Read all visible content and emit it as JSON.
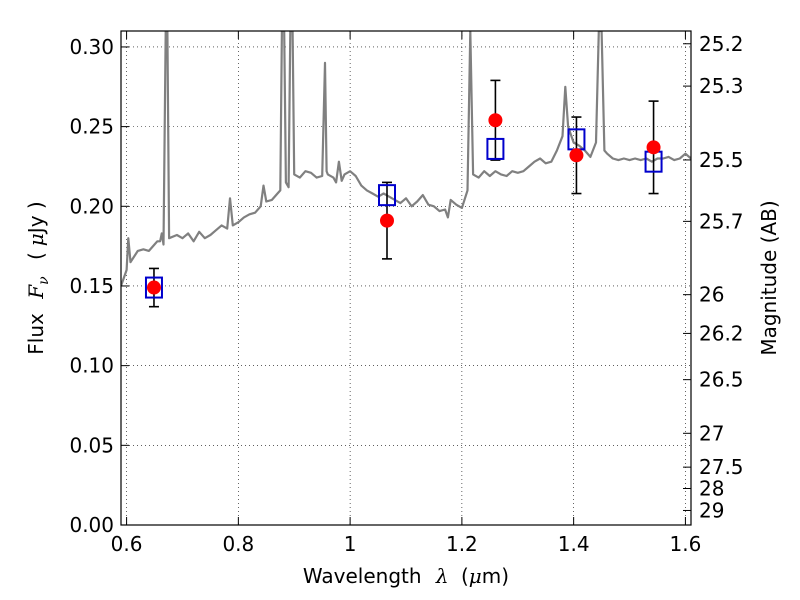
{
  "chart_data": {
    "type": "scatter",
    "title": "",
    "xlabel": {
      "prefix": "Wavelength",
      "symbol": "λ",
      "unit_open": "(",
      "unit_symbol": "μ",
      "unit_rest": "m)"
    },
    "ylabel": {
      "prefix": "Flux",
      "symbol": "F",
      "subscript": "ν",
      "unit_open": "(",
      "unit_symbol": "μ",
      "unit_rest": "Jy )"
    },
    "y2label": "Magnitude (AB)",
    "xlim": [
      0.59,
      1.61
    ],
    "ylim": [
      0.0,
      0.31
    ],
    "grid": true,
    "grid_style": "dotted",
    "x_ticks": [
      {
        "value": 0.6,
        "label": "0.6"
      },
      {
        "value": 0.8,
        "label": "0.8"
      },
      {
        "value": 1.0,
        "label": "1"
      },
      {
        "value": 1.2,
        "label": "1.2"
      },
      {
        "value": 1.4,
        "label": "1.4"
      },
      {
        "value": 1.6,
        "label": "1.6"
      }
    ],
    "y_ticks": [
      {
        "value": 0.0,
        "label": "0.00"
      },
      {
        "value": 0.05,
        "label": "0.05"
      },
      {
        "value": 0.1,
        "label": "0.10"
      },
      {
        "value": 0.15,
        "label": "0.15"
      },
      {
        "value": 0.2,
        "label": "0.20"
      },
      {
        "value": 0.25,
        "label": "0.25"
      },
      {
        "value": 0.3,
        "label": "0.30"
      }
    ],
    "y2_ticks": [
      {
        "mag": 25.2,
        "label": "25.2"
      },
      {
        "mag": 25.3,
        "label": "25.3"
      },
      {
        "mag": 25.5,
        "label": "25.5"
      },
      {
        "mag": 25.7,
        "label": "25.7"
      },
      {
        "mag": 26.0,
        "label": "26"
      },
      {
        "mag": 26.2,
        "label": "26.2"
      },
      {
        "mag": 26.5,
        "label": "26.5"
      },
      {
        "mag": 27.0,
        "label": "27"
      },
      {
        "mag": 27.5,
        "label": "27.5"
      },
      {
        "mag": 28.0,
        "label": "28"
      },
      {
        "mag": 29.0,
        "label": "29"
      }
    ],
    "series": [
      {
        "kind": "line",
        "color": "#808080",
        "points": [
          [
            0.59,
            0.15
          ],
          [
            0.6,
            0.16
          ],
          [
            0.603,
            0.18
          ],
          [
            0.607,
            0.165
          ],
          [
            0.62,
            0.172
          ],
          [
            0.63,
            0.173
          ],
          [
            0.64,
            0.172
          ],
          [
            0.65,
            0.176
          ],
          [
            0.655,
            0.178
          ],
          [
            0.66,
            0.178
          ],
          [
            0.663,
            0.183
          ],
          [
            0.666,
            0.176
          ],
          [
            0.67,
            0.31
          ],
          [
            0.673,
            0.31
          ],
          [
            0.676,
            0.18
          ],
          [
            0.69,
            0.182
          ],
          [
            0.7,
            0.18
          ],
          [
            0.71,
            0.183
          ],
          [
            0.72,
            0.178
          ],
          [
            0.73,
            0.184
          ],
          [
            0.74,
            0.18
          ],
          [
            0.75,
            0.182
          ],
          [
            0.76,
            0.185
          ],
          [
            0.77,
            0.188
          ],
          [
            0.78,
            0.186
          ],
          [
            0.785,
            0.205
          ],
          [
            0.79,
            0.188
          ],
          [
            0.8,
            0.19
          ],
          [
            0.81,
            0.193
          ],
          [
            0.82,
            0.195
          ],
          [
            0.83,
            0.196
          ],
          [
            0.84,
            0.2
          ],
          [
            0.845,
            0.213
          ],
          [
            0.85,
            0.203
          ],
          [
            0.86,
            0.204
          ],
          [
            0.87,
            0.208
          ],
          [
            0.875,
            0.21
          ],
          [
            0.878,
            0.31
          ],
          [
            0.882,
            0.31
          ],
          [
            0.885,
            0.215
          ],
          [
            0.89,
            0.212
          ],
          [
            0.893,
            0.31
          ],
          [
            0.897,
            0.31
          ],
          [
            0.9,
            0.22
          ],
          [
            0.91,
            0.218
          ],
          [
            0.92,
            0.222
          ],
          [
            0.93,
            0.221
          ],
          [
            0.94,
            0.218
          ],
          [
            0.95,
            0.219
          ],
          [
            0.955,
            0.29
          ],
          [
            0.958,
            0.222
          ],
          [
            0.96,
            0.22
          ],
          [
            0.97,
            0.218
          ],
          [
            0.975,
            0.215
          ],
          [
            0.98,
            0.228
          ],
          [
            0.985,
            0.216
          ],
          [
            0.99,
            0.22
          ],
          [
            1.0,
            0.222
          ],
          [
            1.01,
            0.219
          ],
          [
            1.02,
            0.213
          ],
          [
            1.03,
            0.21
          ],
          [
            1.04,
            0.208
          ],
          [
            1.05,
            0.206
          ],
          [
            1.06,
            0.208
          ],
          [
            1.07,
            0.206
          ],
          [
            1.08,
            0.204
          ],
          [
            1.09,
            0.202
          ],
          [
            1.1,
            0.205
          ],
          [
            1.11,
            0.2
          ],
          [
            1.12,
            0.203
          ],
          [
            1.13,
            0.207
          ],
          [
            1.14,
            0.201
          ],
          [
            1.15,
            0.2
          ],
          [
            1.16,
            0.197
          ],
          [
            1.17,
            0.198
          ],
          [
            1.175,
            0.193
          ],
          [
            1.18,
            0.204
          ],
          [
            1.19,
            0.201
          ],
          [
            1.2,
            0.199
          ],
          [
            1.21,
            0.21
          ],
          [
            1.215,
            0.31
          ],
          [
            1.22,
            0.22
          ],
          [
            1.23,
            0.218
          ],
          [
            1.24,
            0.222
          ],
          [
            1.25,
            0.219
          ],
          [
            1.26,
            0.222
          ],
          [
            1.27,
            0.22
          ],
          [
            1.28,
            0.219
          ],
          [
            1.29,
            0.222
          ],
          [
            1.3,
            0.221
          ],
          [
            1.31,
            0.222
          ],
          [
            1.32,
            0.225
          ],
          [
            1.33,
            0.228
          ],
          [
            1.34,
            0.23
          ],
          [
            1.35,
            0.227
          ],
          [
            1.36,
            0.228
          ],
          [
            1.37,
            0.235
          ],
          [
            1.38,
            0.244
          ],
          [
            1.385,
            0.275
          ],
          [
            1.39,
            0.25
          ],
          [
            1.4,
            0.24
          ],
          [
            1.41,
            0.238
          ],
          [
            1.42,
            0.235
          ],
          [
            1.43,
            0.231
          ],
          [
            1.44,
            0.24
          ],
          [
            1.445,
            0.31
          ],
          [
            1.45,
            0.31
          ],
          [
            1.455,
            0.235
          ],
          [
            1.46,
            0.233
          ],
          [
            1.47,
            0.23
          ],
          [
            1.48,
            0.229
          ],
          [
            1.49,
            0.23
          ],
          [
            1.5,
            0.229
          ],
          [
            1.51,
            0.23
          ],
          [
            1.52,
            0.229
          ],
          [
            1.53,
            0.23
          ],
          [
            1.54,
            0.228
          ],
          [
            1.55,
            0.23
          ],
          [
            1.56,
            0.23
          ],
          [
            1.57,
            0.231
          ],
          [
            1.58,
            0.229
          ],
          [
            1.59,
            0.23
          ],
          [
            1.6,
            0.233
          ],
          [
            1.61,
            0.23
          ]
        ]
      },
      {
        "kind": "open-square",
        "color": "#0000cc",
        "points": [
          [
            0.649,
            0.149
          ],
          [
            1.066,
            0.207
          ],
          [
            1.26,
            0.236
          ],
          [
            1.405,
            0.242
          ],
          [
            1.543,
            0.228
          ]
        ]
      },
      {
        "kind": "filled-circle",
        "color": "#ff0000",
        "points": [
          [
            0.649,
            0.149
          ],
          [
            1.066,
            0.191
          ],
          [
            1.26,
            0.254
          ],
          [
            1.405,
            0.232
          ],
          [
            1.543,
            0.237
          ]
        ],
        "yerr": [
          [
            0.012,
            0.012
          ],
          [
            0.024,
            0.024
          ],
          [
            0.025,
            0.025
          ],
          [
            0.024,
            0.024
          ],
          [
            0.029,
            0.029
          ]
        ]
      }
    ]
  }
}
